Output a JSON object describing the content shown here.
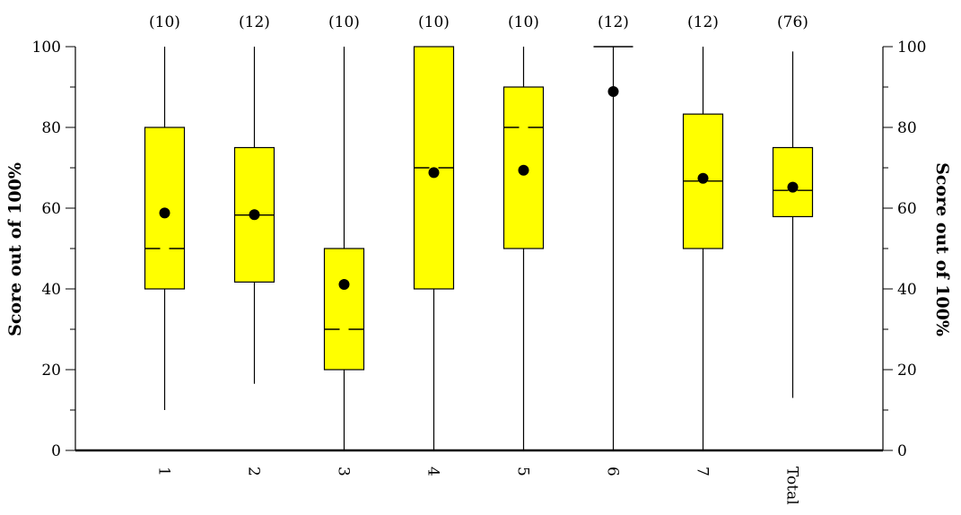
{
  "chart_data": {
    "type": "boxplot",
    "ylabel": "Score out of 100%",
    "ylim": [
      0,
      100
    ],
    "yticks": [
      0,
      20,
      40,
      60,
      80,
      100
    ],
    "categories": [
      "1",
      "2",
      "3",
      "4",
      "5",
      "6",
      "7",
      "Total"
    ],
    "counts": [
      "(10)",
      "(12)",
      "(10)",
      "(10)",
      "(10)",
      "(12)",
      "(12)",
      "(76)"
    ],
    "series": [
      {
        "category": "1",
        "min": 10,
        "q1": 40,
        "median": 50,
        "q3": 80,
        "max": 100,
        "mean": 58.8
      },
      {
        "category": "2",
        "min": 16.5,
        "q1": 41.7,
        "median": 58.3,
        "q3": 75,
        "max": 100,
        "mean": 58.4
      },
      {
        "category": "3",
        "min": 0,
        "q1": 20,
        "median": 30,
        "q3": 50,
        "max": 100,
        "mean": 41.1
      },
      {
        "category": "4",
        "min": 0,
        "q1": 40,
        "median": 70,
        "q3": 100,
        "max": 100,
        "mean": 68.8
      },
      {
        "category": "5",
        "min": 0,
        "q1": 50,
        "median": 80,
        "q3": 90,
        "max": 100,
        "mean": 69.4
      },
      {
        "category": "6",
        "min": 0,
        "q1": 100,
        "median": 100,
        "q3": 100,
        "max": 100,
        "mean": 88.9
      },
      {
        "category": "7",
        "min": 0,
        "q1": 50,
        "median": 66.7,
        "q3": 83.3,
        "max": 100,
        "mean": 67.4
      },
      {
        "category": "Total",
        "min": 13,
        "q1": 57.9,
        "median": 64.4,
        "q3": 75,
        "max": 98.8,
        "mean": 65.2
      }
    ],
    "colors": {
      "box": "#ffff00",
      "stroke": "#000000",
      "mean_marker": "#000000"
    }
  }
}
